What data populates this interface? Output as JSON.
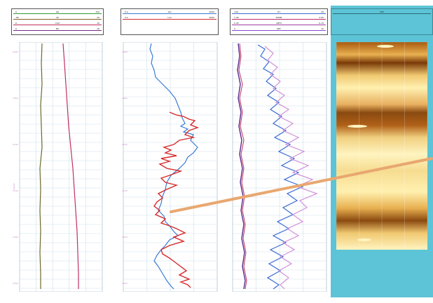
{
  "tracks": [
    {
      "id": "track1",
      "curves": [
        {
          "name": "GR",
          "min": "0",
          "max": "150",
          "color": "#2e9a3c"
        },
        {
          "name": "SP",
          "min": "-80",
          "max": "20",
          "color": "#8a5c2a"
        },
        {
          "name": "CALI",
          "min": "6",
          "max": "16",
          "color": "#c0305a"
        },
        {
          "name": "BS",
          "min": "6",
          "max": "16",
          "color": "#7a2a8a"
        }
      ]
    },
    {
      "id": "track2",
      "curves": [
        {
          "name": "ILD",
          "min": "0.2",
          "max": "2000",
          "color": "#3a7ad6"
        },
        {
          "name": "LLS",
          "min": "0.2",
          "max": "2000",
          "color": "#d62a2a"
        }
      ]
    },
    {
      "id": "track3",
      "curves": [
        {
          "name": "DT",
          "min": "140",
          "max": "40",
          "color": "#3a6ad6"
        },
        {
          "name": "RHOB",
          "min": "1.95",
          "max": "2.95",
          "color": "#c02a6a"
        },
        {
          "name": "NPHI",
          "min": "0.45",
          "max": "-0.15",
          "color": "#a040a0"
        },
        {
          "name": "PEF",
          "min": "0",
          "max": "10",
          "color": "#8a4ad0"
        }
      ]
    }
  ],
  "image_track": {
    "header": "FMI",
    "footer": "",
    "color": "#5cc4d6"
  },
  "depth_labels": [
    "1000",
    "1050",
    "1100",
    "1150",
    "1200",
    "1250",
    "1300"
  ],
  "depth_axis_caption": "Depth"
}
